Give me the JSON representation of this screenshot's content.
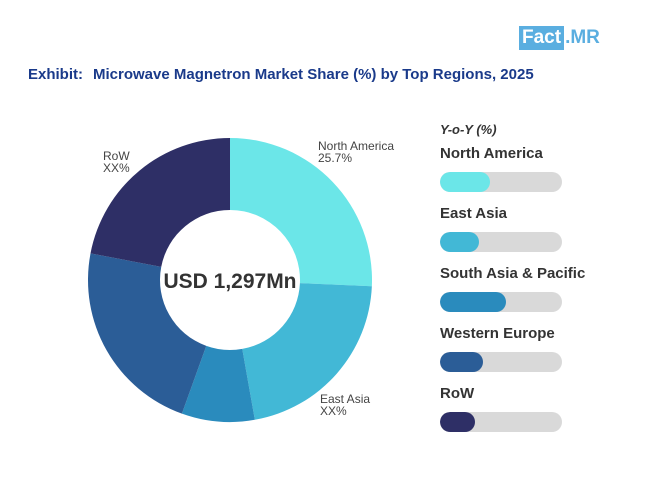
{
  "brand": {
    "logo_part1": "Fact",
    "logo_part2": ".MR"
  },
  "header": {
    "exhibit": "Exhibit:",
    "title": "Microwave Magnetron Market Share (%) by Top Regions, 2025"
  },
  "chart_data": {
    "type": "pie",
    "donut": true,
    "center_label": "USD 1,297Mn",
    "categories": [
      "North America",
      "East Asia",
      "South Asia & Pacific",
      "Western Europe",
      "RoW"
    ],
    "values": [
      25.7,
      21.5,
      8.3,
      22.5,
      22.0
    ],
    "colors": [
      "#6be6e8",
      "#42b8d6",
      "#2a8bbd",
      "#2b5d97",
      "#2e2f66"
    ],
    "slice_labels": [
      {
        "name": "North America",
        "value": "25.7%"
      },
      {
        "name": "East Asia",
        "value": "XX%"
      },
      {
        "name": "RoW",
        "value": "XX%"
      }
    ],
    "legend": {
      "title": "Y-o-Y (%)",
      "items": [
        {
          "name": "North America",
          "fill": 0.41
        },
        {
          "name": "East Asia",
          "fill": 0.32
        },
        {
          "name": "South Asia & Pacific",
          "fill": 0.54
        },
        {
          "name": "Western Europe",
          "fill": 0.35
        },
        {
          "name": "RoW",
          "fill": 0.29
        }
      ]
    }
  }
}
